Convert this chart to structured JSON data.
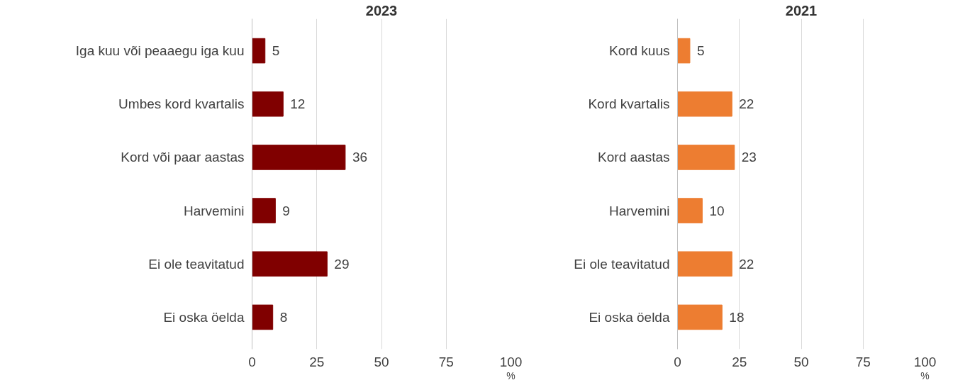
{
  "chart_data": [
    {
      "type": "bar",
      "orientation": "horizontal",
      "title": "2023",
      "xlabel": "%",
      "categories": [
        "Iga kuu või peaaegu iga kuu",
        "Umbes kord kvartalis",
        "Kord või paar aastas",
        "Harvemini",
        "Ei ole teavitatud",
        "Ei oska öelda"
      ],
      "values": [
        5,
        12,
        36,
        9,
        29,
        8
      ],
      "color": "#800000",
      "xlim": [
        0,
        100
      ],
      "xticks": [
        0,
        25,
        50,
        75,
        100
      ],
      "grid": "x",
      "data_labels": true
    },
    {
      "type": "bar",
      "orientation": "horizontal",
      "title": "2021",
      "xlabel": "%",
      "categories": [
        "Kord kuus",
        "Kord kvartalis",
        "Kord aastas",
        "Harvemini",
        "Ei ole teavitatud",
        "Ei oska öelda"
      ],
      "values": [
        5,
        22,
        23,
        10,
        22,
        18
      ],
      "color": "#ed7d31",
      "xlim": [
        0,
        100
      ],
      "xticks": [
        0,
        25,
        50,
        75,
        100
      ],
      "grid": "x",
      "data_labels": true
    }
  ]
}
